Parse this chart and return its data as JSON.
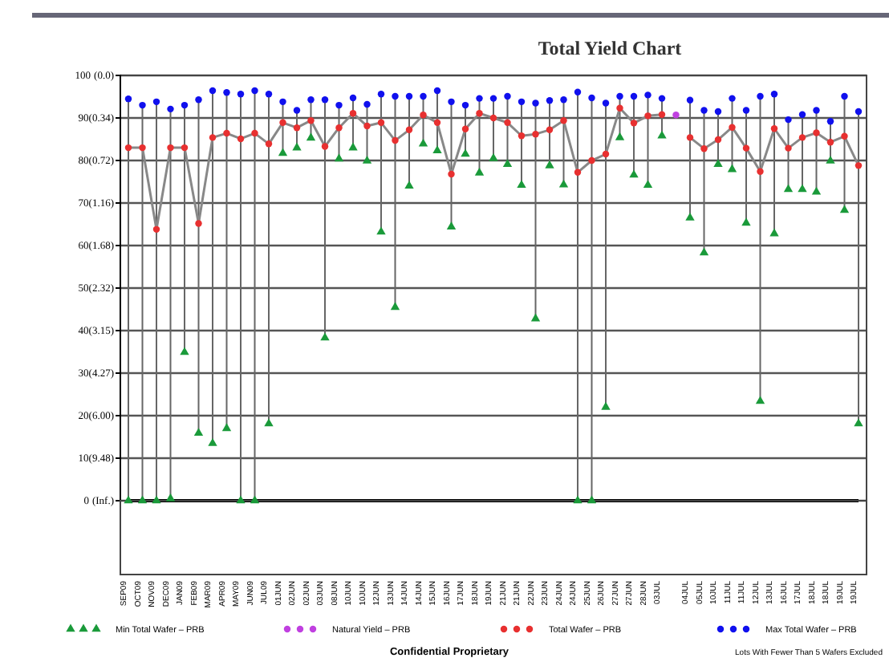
{
  "chart_data": {
    "type": "scatter",
    "title": "Total Yield Chart",
    "categories": [
      "SEP09",
      "OCT09",
      "NOV09",
      "DEC09",
      "JAN09",
      "FEB09",
      "MAR09",
      "APR09",
      "MAY09",
      "JUN09",
      "JUL09",
      "01JUN",
      "02JUN",
      "02JUN",
      "03JUN",
      "08JUN",
      "10JUN",
      "10JUN",
      "12JUN",
      "13JUN",
      "14JUN",
      "14JUN",
      "15JUN",
      "16JUN",
      "17JUN",
      "18JUN",
      "19JUN",
      "21JUN",
      "21JUN",
      "22JUN",
      "23JUN",
      "24JUN",
      "24JUN",
      "25JUN",
      "26JUN",
      "27JUN",
      "27JUN",
      "28JUN",
      "03JUL",
      null,
      "04JUL",
      "05JUL",
      "10JUL",
      "11JUL",
      "11JUL",
      "12JUL",
      "13JUL",
      "16JUL",
      "17JUL",
      "18JUL",
      "18JUL",
      "19JUL",
      "19JUL"
    ],
    "series": [
      {
        "name": "Min Total Wafer – PRB",
        "color": "#1a9a3a",
        "marker": "triangle",
        "values": [
          0,
          0,
          0,
          0.5,
          34.9,
          15.9,
          13.5,
          17,
          0,
          0,
          18.1,
          81.7,
          83.0,
          85.3,
          38.3,
          80.4,
          83.0,
          79.9,
          63.2,
          45.5,
          74.0,
          83.9,
          82.3,
          64.4,
          81.5,
          77.1,
          80.5,
          79.1,
          74.2,
          42.8,
          78.8,
          74.3,
          0,
          0,
          22.0,
          85.4,
          76.6,
          74.2,
          85.8,
          null,
          66.5,
          58.3,
          79.1,
          77.9,
          65.3,
          23.4,
          62.8,
          73.2,
          73.2,
          72.6,
          79.9,
          68.3,
          18.1
        ]
      },
      {
        "name": "Natural Yield – PRB",
        "color": "#c040e0",
        "marker": "circle",
        "values": [
          null,
          null,
          null,
          null,
          null,
          null,
          null,
          null,
          null,
          null,
          null,
          null,
          null,
          null,
          null,
          null,
          null,
          null,
          null,
          null,
          null,
          null,
          null,
          null,
          null,
          null,
          null,
          null,
          null,
          null,
          null,
          null,
          null,
          null,
          null,
          null,
          null,
          null,
          null,
          90.7,
          null,
          null,
          null,
          null,
          null,
          null,
          null,
          null,
          null,
          null,
          null,
          null,
          null
        ]
      },
      {
        "name": "Total Wafer – PRB",
        "color": "#e83030",
        "type": "line",
        "marker": "circle",
        "values": [
          83.0,
          83.0,
          63.8,
          83.0,
          83.0,
          65.2,
          85.4,
          86.4,
          85.1,
          86.4,
          83.9,
          88.9,
          87.7,
          89.4,
          83.3,
          87.7,
          91.1,
          88.1,
          88.9,
          84.7,
          87.2,
          90.7,
          88.9,
          76.8,
          87.4,
          91.1,
          90.0,
          88.9,
          85.8,
          86.2,
          87.2,
          89.4,
          77.2,
          80.0,
          81.5,
          92.3,
          88.8,
          90.5,
          90.8,
          null,
          85.4,
          82.8,
          84.9,
          87.8,
          82.9,
          77.4,
          87.5,
          82.9,
          85.4,
          86.5,
          84.3,
          85.7,
          78.8
        ]
      },
      {
        "name": "Max Total Wafer – PRB",
        "color": "#1010ee",
        "marker": "circle",
        "values": [
          94.5,
          93.0,
          93.8,
          92.1,
          93.0,
          94.3,
          96.4,
          96.0,
          95.6,
          96.4,
          95.6,
          93.8,
          91.8,
          94.3,
          94.3,
          93.0,
          94.7,
          93.2,
          95.6,
          95.1,
          95.1,
          95.1,
          96.4,
          93.8,
          93.0,
          94.6,
          94.6,
          95.1,
          93.8,
          93.5,
          94.1,
          94.3,
          96.1,
          94.7,
          93.5,
          95.1,
          95.1,
          95.4,
          94.6,
          null,
          94.2,
          91.8,
          91.5,
          94.6,
          91.8,
          95.1,
          95.6,
          89.6,
          90.8,
          91.8,
          89.2,
          95.1,
          91.5
        ]
      }
    ],
    "ylim": [
      0,
      100
    ],
    "yticks": [
      0,
      10,
      20,
      30,
      40,
      50,
      60,
      70,
      80,
      90,
      100
    ],
    "grid": "y",
    "legend": "bottom",
    "annotations": [
      "Confidential Proprietary",
      "Lots With Fewer Than 5 Wafers Excluded",
      "(Inf.)",
      "(9.48)",
      "(6.00)",
      "(4.27)",
      "(3.15)",
      "(2.32)",
      "(1.68)",
      "(1.16)",
      "(0.72)",
      "(0.34)",
      "(0.0)"
    ]
  }
}
